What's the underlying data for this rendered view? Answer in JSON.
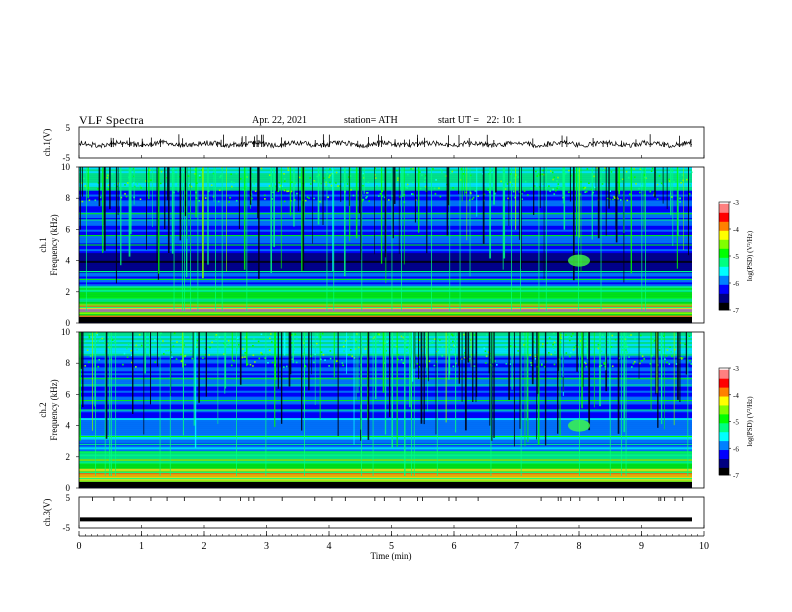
{
  "header": {
    "title": "VLF Spectra",
    "date": "Apr. 22, 2021",
    "station": "station= ATH",
    "start_ut": "start UT =   22: 10: 1"
  },
  "chart_data": [
    {
      "type": "line",
      "panel": "ch1-waveform",
      "ylabel": "ch.1(V)",
      "yticks": [
        "5",
        "-5"
      ],
      "ylim": [
        -5,
        5
      ],
      "baseline": -0.5,
      "description_level": "noisy signal around 0 V"
    },
    {
      "type": "heatmap",
      "panel": "ch1-spectrogram",
      "ylabel": "ch.1\nFrequency (kHz)",
      "ylabel_lines": [
        "ch.1",
        "Frequency (kHz)"
      ],
      "yticks": [
        "0",
        "2",
        "4",
        "6",
        "8",
        "10"
      ],
      "ylim": [
        0,
        10
      ],
      "colorbar": {
        "label": "log(PSD) (V²/Hz)",
        "ticks": [
          "-3",
          "-4",
          "-5",
          "-6",
          "-7"
        ],
        "range": [
          -7,
          -3
        ]
      }
    },
    {
      "type": "heatmap",
      "panel": "ch2-spectrogram",
      "ylabel_lines": [
        "ch.2",
        "Frequency (kHz)"
      ],
      "yticks": [
        "0",
        "2",
        "4",
        "6",
        "8",
        "10"
      ],
      "ylim": [
        0,
        10
      ],
      "colorbar": {
        "label": "log(PSD) (V²/Hz)",
        "ticks": [
          "-3",
          "-4",
          "-5",
          "-6",
          "-7"
        ],
        "range": [
          -7,
          -3
        ]
      }
    },
    {
      "type": "line",
      "panel": "ch3-waveform",
      "ylabel": "ch.3(V)",
      "yticks": [
        "5",
        "-5"
      ],
      "ylim": [
        -5,
        5
      ],
      "baseline": -2.2
    }
  ],
  "xaxis": {
    "label": "Time (min)",
    "ticks": [
      "0",
      "1",
      "2",
      "3",
      "4",
      "5",
      "6",
      "7",
      "8",
      "9",
      "10"
    ],
    "xlim": [
      0,
      10
    ]
  },
  "colors": {
    "colormap": [
      "#000000",
      "#000080",
      "#0000ff",
      "#0080ff",
      "#00ffff",
      "#00ff80",
      "#00ff00",
      "#80ff00",
      "#ffff00",
      "#ff8000",
      "#ff0000",
      "#ff8080",
      "#ffffff"
    ]
  }
}
